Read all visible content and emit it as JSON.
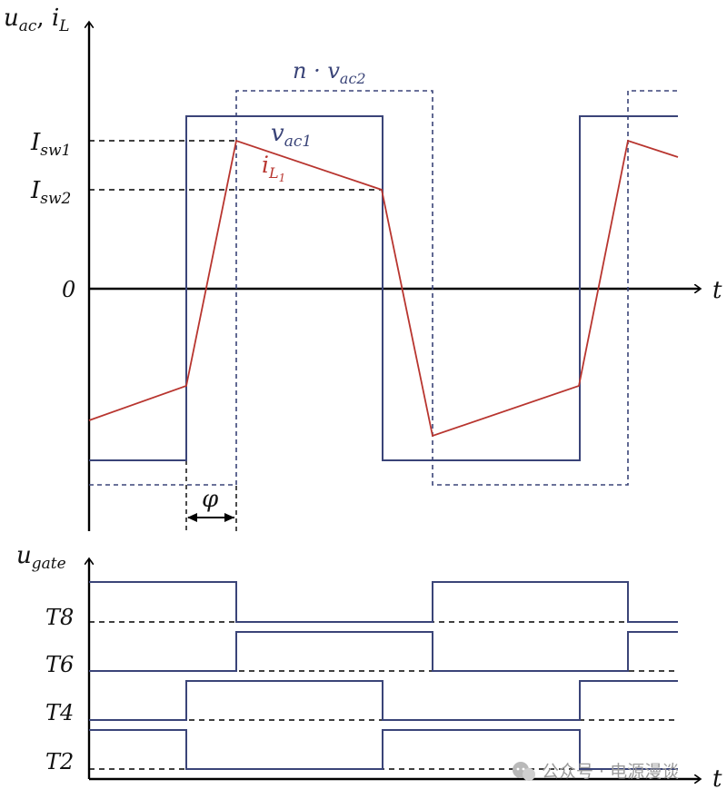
{
  "top_plot": {
    "y_axis_label": {
      "main": "u",
      "sub1": "ac",
      "sep": ", ",
      "main2": "i",
      "sub2": "L"
    },
    "x_axis_label": "t",
    "zero_label": "0",
    "isw1_label": {
      "main": "I",
      "sub": "sw1"
    },
    "isw2_label": {
      "main": "I",
      "sub": "sw2"
    },
    "vac1_label": {
      "main": "v",
      "sub": "ac1"
    },
    "nvac2_label": {
      "prefix": "n · ",
      "main": "v",
      "sub": "ac2"
    },
    "il1_label": {
      "main": "i",
      "sub": "L",
      "subsub": "1"
    },
    "phi_label": "φ"
  },
  "bottom_plot": {
    "y_axis_label": {
      "main": "u",
      "sub": "gate"
    },
    "x_axis_label": "t",
    "gates": [
      "T8",
      "T6",
      "T4",
      "T2"
    ]
  },
  "watermark": {
    "text": "公众号 · 电源漫谈"
  },
  "colors": {
    "voltage": "#3a4478",
    "current": "#b8352f",
    "axis": "#000000"
  }
}
